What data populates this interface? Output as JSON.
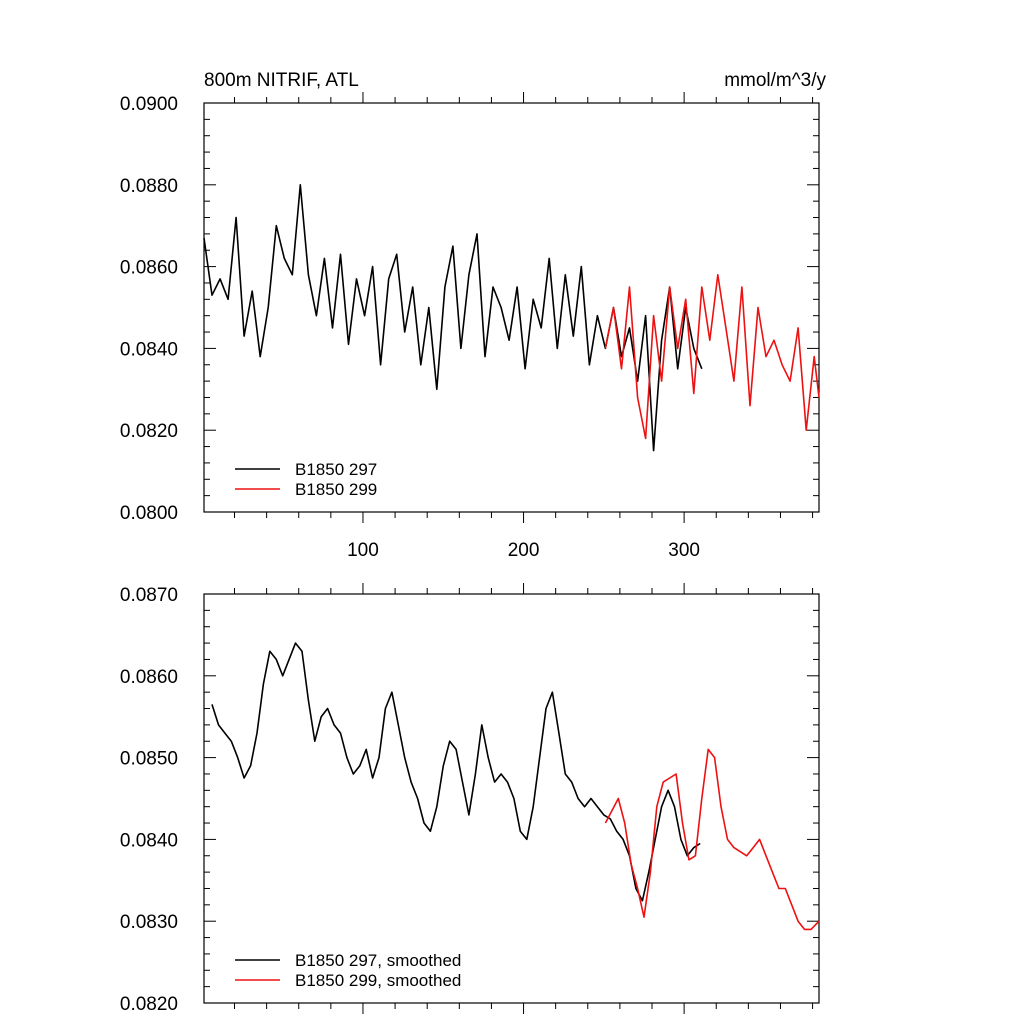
{
  "chart_data": [
    {
      "type": "line",
      "title": "800m NITRIF, ATL",
      "units": "mmol/m^3/y",
      "xlabel": "",
      "ylabel": "",
      "xlim": [
        1,
        384
      ],
      "ylim": [
        0.08,
        0.09
      ],
      "x_ticks": [
        100,
        200,
        300
      ],
      "x_tick_labels": [
        "100",
        "200",
        "300"
      ],
      "y_ticks": [
        0.08,
        0.082,
        0.084,
        0.086,
        0.088,
        0.09
      ],
      "y_tick_labels": [
        "0.0800",
        "0.0820",
        "0.0840",
        "0.0860",
        "0.0880",
        "0.0900"
      ],
      "legend_position": "bottom-left",
      "series": [
        {
          "name": "B1850 297",
          "color": "#000000",
          "x": [
            1,
            6,
            11,
            16,
            21,
            26,
            31,
            36,
            41,
            46,
            51,
            56,
            61,
            66,
            71,
            76,
            81,
            86,
            91,
            96,
            101,
            106,
            111,
            116,
            121,
            126,
            131,
            136,
            141,
            146,
            151,
            156,
            161,
            166,
            171,
            176,
            181,
            186,
            191,
            196,
            201,
            206,
            211,
            216,
            221,
            226,
            231,
            236,
            241,
            246,
            251,
            256,
            261,
            266,
            271,
            276,
            281,
            286,
            291,
            296,
            301,
            306,
            311
          ],
          "y": [
            0.0867,
            0.0853,
            0.0857,
            0.0852,
            0.0872,
            0.0843,
            0.0854,
            0.0838,
            0.085,
            0.087,
            0.0862,
            0.0858,
            0.088,
            0.0858,
            0.0848,
            0.0862,
            0.0845,
            0.0863,
            0.0841,
            0.0857,
            0.0848,
            0.086,
            0.0836,
            0.0857,
            0.0863,
            0.0844,
            0.0855,
            0.0836,
            0.085,
            0.083,
            0.0855,
            0.0865,
            0.084,
            0.0858,
            0.0868,
            0.0838,
            0.0855,
            0.085,
            0.0842,
            0.0855,
            0.0835,
            0.0852,
            0.0845,
            0.0862,
            0.084,
            0.0858,
            0.0843,
            0.086,
            0.0836,
            0.0848,
            0.084,
            0.085,
            0.0838,
            0.0845,
            0.0832,
            0.0848,
            0.0815,
            0.0842,
            0.0855,
            0.0835,
            0.085,
            0.084,
            0.0835
          ]
        },
        {
          "name": "B1850 299",
          "color": "#ee1111",
          "x": [
            251,
            256,
            261,
            266,
            271,
            276,
            281,
            286,
            291,
            296,
            301,
            306,
            311,
            316,
            321,
            326,
            331,
            336,
            341,
            346,
            351,
            356,
            361,
            366,
            371,
            376,
            381,
            384
          ],
          "y": [
            0.084,
            0.085,
            0.0835,
            0.0855,
            0.0828,
            0.0818,
            0.0848,
            0.0832,
            0.0855,
            0.084,
            0.0852,
            0.0829,
            0.0855,
            0.0842,
            0.0858,
            0.0845,
            0.0832,
            0.0855,
            0.0826,
            0.085,
            0.0838,
            0.0842,
            0.0836,
            0.0832,
            0.0845,
            0.082,
            0.0838,
            0.0828
          ]
        }
      ]
    },
    {
      "type": "line",
      "title": "",
      "xlabel": "",
      "ylabel": "",
      "xlim": [
        1,
        384
      ],
      "ylim": [
        0.082,
        0.087
      ],
      "x_ticks": [
        100,
        200,
        300
      ],
      "x_tick_labels": [],
      "y_ticks": [
        0.082,
        0.083,
        0.084,
        0.085,
        0.086,
        0.087
      ],
      "y_tick_labels": [
        "0.0820",
        "0.0830",
        "0.0840",
        "0.0850",
        "0.0860",
        "0.0870"
      ],
      "legend_position": "bottom-left",
      "series": [
        {
          "name": "B1850 297, smoothed",
          "color": "#000000",
          "x": [
            6,
            10,
            14,
            18,
            22,
            26,
            30,
            34,
            38,
            42,
            46,
            50,
            54,
            58,
            62,
            66,
            70,
            74,
            78,
            82,
            86,
            90,
            94,
            98,
            102,
            106,
            110,
            114,
            118,
            122,
            126,
            130,
            134,
            138,
            142,
            146,
            150,
            154,
            158,
            162,
            166,
            170,
            174,
            178,
            182,
            186,
            190,
            194,
            198,
            202,
            206,
            210,
            214,
            218,
            222,
            226,
            230,
            234,
            238,
            242,
            246,
            250,
            254,
            258,
            262,
            266,
            270,
            274,
            278,
            282,
            286,
            290,
            294,
            298,
            302,
            306,
            310
          ],
          "y": [
            0.08565,
            0.0854,
            0.0853,
            0.0852,
            0.085,
            0.08475,
            0.0849,
            0.0853,
            0.0859,
            0.0863,
            0.0862,
            0.086,
            0.0862,
            0.0864,
            0.0863,
            0.0857,
            0.0852,
            0.0855,
            0.0856,
            0.0854,
            0.0853,
            0.085,
            0.0848,
            0.0849,
            0.0851,
            0.08475,
            0.085,
            0.0856,
            0.0858,
            0.0854,
            0.085,
            0.0847,
            0.0845,
            0.0842,
            0.0841,
            0.0844,
            0.0849,
            0.0852,
            0.0851,
            0.0847,
            0.0843,
            0.0848,
            0.0854,
            0.085,
            0.0847,
            0.0848,
            0.0847,
            0.0845,
            0.0841,
            0.084,
            0.0844,
            0.085,
            0.0856,
            0.0858,
            0.0853,
            0.0848,
            0.0847,
            0.0845,
            0.0844,
            0.0845,
            0.0844,
            0.0843,
            0.08425,
            0.0841,
            0.084,
            0.0838,
            0.0834,
            0.08325,
            0.0836,
            0.084,
            0.0844,
            0.0846,
            0.0844,
            0.084,
            0.0838,
            0.0839,
            0.08395
          ]
        },
        {
          "name": "B1850 299, smoothed",
          "color": "#ee1111",
          "x": [
            251,
            255,
            259,
            263,
            267,
            271,
            275,
            279,
            283,
            287,
            291,
            295,
            299,
            303,
            307,
            311,
            315,
            319,
            323,
            327,
            331,
            335,
            339,
            343,
            347,
            351,
            355,
            359,
            363,
            367,
            371,
            375,
            379,
            384
          ],
          "y": [
            0.0842,
            0.08435,
            0.0845,
            0.0842,
            0.0837,
            0.0834,
            0.08305,
            0.0836,
            0.0844,
            0.0847,
            0.08475,
            0.0848,
            0.0842,
            0.08375,
            0.0838,
            0.0845,
            0.0851,
            0.085,
            0.0844,
            0.084,
            0.0839,
            0.08385,
            0.0838,
            0.0839,
            0.084,
            0.0838,
            0.0836,
            0.0834,
            0.0834,
            0.0832,
            0.083,
            0.0829,
            0.0829,
            0.083
          ]
        }
      ]
    }
  ]
}
